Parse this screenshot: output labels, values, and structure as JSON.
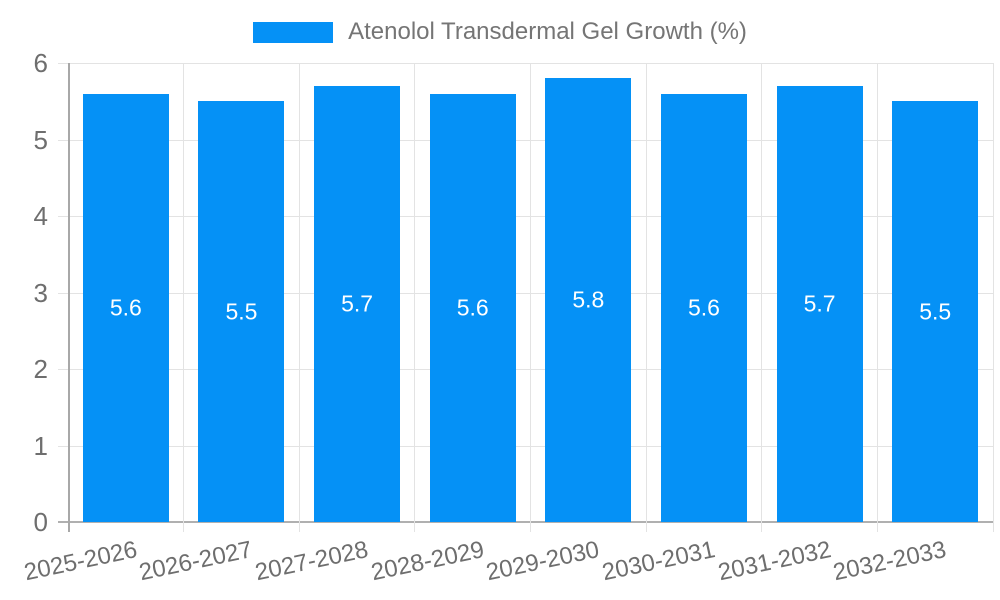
{
  "legend": {
    "label": "Atenolol Transdermal Gel Growth (%)",
    "swatch_color": "#0591f6"
  },
  "chart_data": {
    "type": "bar",
    "title": "",
    "xlabel": "",
    "ylabel": "",
    "categories": [
      "2025-2026",
      "2026-2027",
      "2027-2028",
      "2028-2029",
      "2029-2030",
      "2030-2031",
      "2031-2032",
      "2032-2033"
    ],
    "series": [
      {
        "name": "Atenolol Transdermal Gel Growth (%)",
        "values": [
          5.6,
          5.5,
          5.7,
          5.6,
          5.8,
          5.6,
          5.7,
          5.5
        ]
      }
    ],
    "value_labels": [
      "5.6",
      "5.5",
      "5.7",
      "5.6",
      "5.8",
      "5.6",
      "5.7",
      "5.5"
    ],
    "ylim": [
      0,
      6
    ],
    "yticks": [
      0,
      1,
      2,
      3,
      4,
      5,
      6
    ],
    "grid": true,
    "legend_position": "top",
    "colors": {
      "bar": "#0591f6",
      "value_label": "#ffffff",
      "tick_label": "#6e6e6e",
      "gridline": "#e3e3e3",
      "axis_line": "#a8a8a8"
    }
  }
}
